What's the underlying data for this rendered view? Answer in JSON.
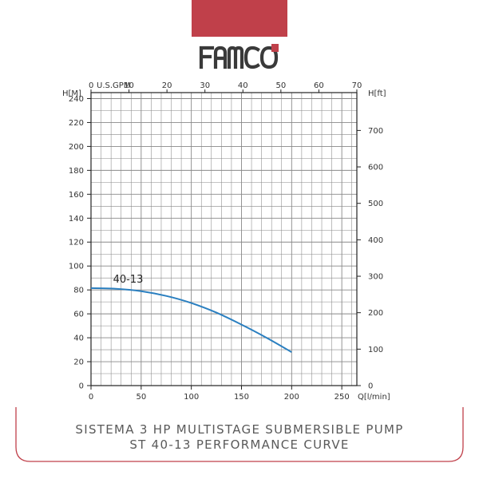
{
  "brand": {
    "name": "FAMCO",
    "accent_color": "#c0404a",
    "logo_color": "#3a3a3a"
  },
  "caption": {
    "line1": "SISTEMA 3 HP MULTISTAGE SUBMERSIBLE PUMP",
    "line2": "ST 40-13 PERFORMANCE CURVE"
  },
  "chart_data": {
    "type": "line",
    "title": "",
    "xlabel": "Q[l/min]",
    "ylabel": "H[M]",
    "top_axis_label": "U.S.GPM",
    "right_axis_label": "H[ft]",
    "xlim": [
      0,
      265
    ],
    "ylim": [
      0,
      245
    ],
    "grid": true,
    "x_ticks": [
      0,
      50,
      100,
      150,
      200,
      250
    ],
    "x_tick_labels": [
      "0",
      "50",
      "100",
      "150",
      "200",
      "250"
    ],
    "y_ticks": [
      0,
      20,
      40,
      60,
      80,
      100,
      120,
      140,
      160,
      180,
      200,
      220,
      240
    ],
    "y_tick_labels": [
      "0",
      "20",
      "40",
      "60",
      "80",
      "100",
      "120",
      "140",
      "160",
      "180",
      "200",
      "220",
      "240"
    ],
    "top_ticks_gpm": [
      0,
      10,
      20,
      30,
      40,
      50,
      60,
      70
    ],
    "top_tick_labels": [
      "0",
      "10",
      "20",
      "30",
      "40",
      "50",
      "60",
      "70"
    ],
    "right_ticks_ft": [
      0,
      100,
      200,
      300,
      400,
      500,
      600,
      700
    ],
    "right_tick_labels": [
      "0",
      "100",
      "200",
      "300",
      "400",
      "500",
      "600",
      "700"
    ],
    "series": [
      {
        "name": "40-13",
        "color": "#2a7fc0",
        "x": [
          0,
          25,
          50,
          75,
          100,
          125,
          150,
          175,
          200
        ],
        "y": [
          81.5,
          81,
          79,
          75,
          69,
          61,
          51,
          40,
          28
        ]
      }
    ],
    "series_label_at": [
      37,
      86
    ]
  }
}
